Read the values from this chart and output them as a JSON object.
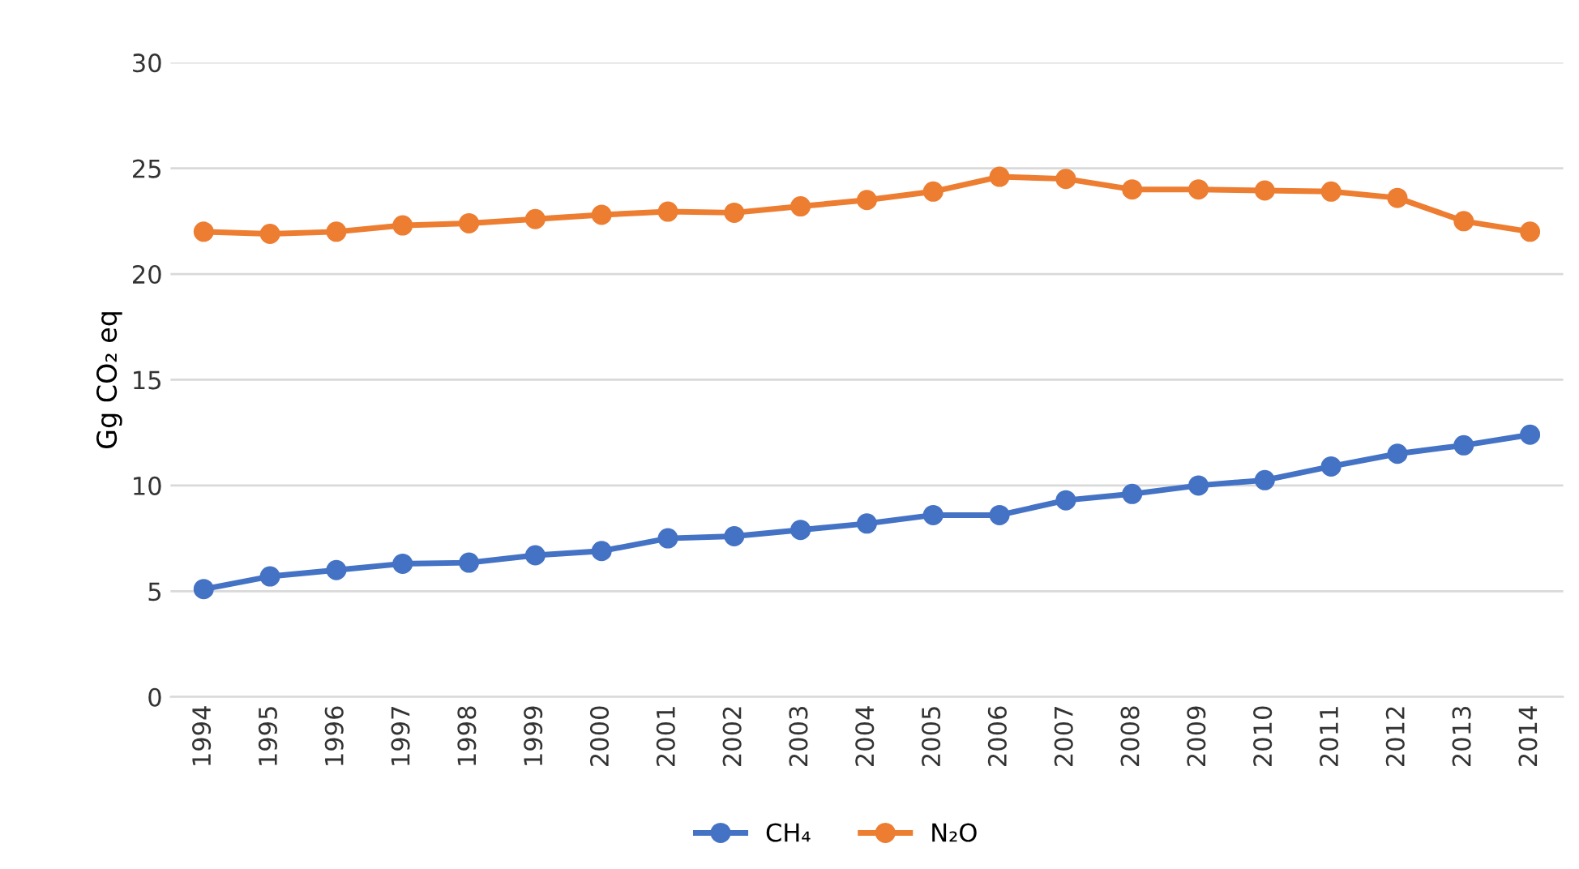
{
  "chart_data": {
    "type": "line",
    "ylabel": "Gg CO₂ eq",
    "categories": [
      "1994",
      "1995",
      "1996",
      "1997",
      "1998",
      "1999",
      "2000",
      "2001",
      "2002",
      "2003",
      "2004",
      "2005",
      "2006",
      "2007",
      "2008",
      "2009",
      "2010",
      "2011",
      "2012",
      "2013",
      "2014"
    ],
    "series": [
      {
        "name": "CH₄",
        "color": "#4472c4",
        "values": [
          5.1,
          5.7,
          6.0,
          6.3,
          6.35,
          6.7,
          6.9,
          7.5,
          7.6,
          7.9,
          8.2,
          8.6,
          8.6,
          9.3,
          9.6,
          10.0,
          10.25,
          10.9,
          11.5,
          11.9,
          12.4
        ]
      },
      {
        "name": "N₂O",
        "color": "#ed7d31",
        "values": [
          22.0,
          21.9,
          22.0,
          22.3,
          22.4,
          22.6,
          22.8,
          22.95,
          22.9,
          23.2,
          23.5,
          23.9,
          24.6,
          24.5,
          24.0,
          24.0,
          23.95,
          23.9,
          23.6,
          22.5,
          22.0
        ]
      }
    ],
    "ylim": [
      0,
      30
    ],
    "yticks": [
      0,
      5,
      10,
      15,
      20,
      25,
      30
    ],
    "grid": "y",
    "legend": "bottom",
    "marker": "circle",
    "line_style": "solid"
  }
}
